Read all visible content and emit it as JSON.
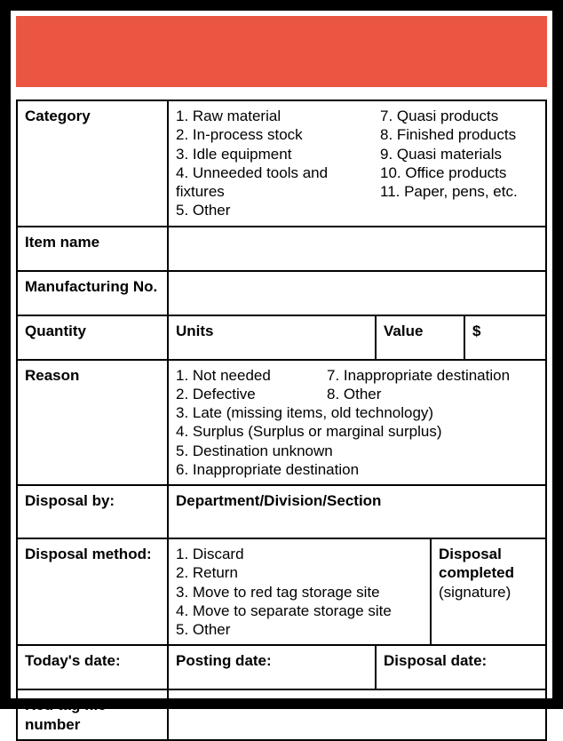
{
  "colors": {
    "header": "#eb5642",
    "border": "#000000",
    "background": "#ffffff"
  },
  "labels": {
    "category": "Category",
    "item_name": "Item name",
    "mfg_no": "Manufacturing No.",
    "quantity": "Quantity",
    "units": "Units",
    "value": "Value",
    "dollar": "$",
    "reason": "Reason",
    "disposal_by": "Disposal by:",
    "disposal_by_value": "Department/Division/Section",
    "disposal_method": "Disposal method:",
    "disposal_completed": "Disposal completed",
    "signature": "(signature)",
    "todays_date": "Today's date:",
    "posting_date": "Posting date:",
    "disposal_date": "Disposal date:",
    "red_tag": "Red tag file number"
  },
  "category_items_a": [
    "1. Raw material",
    "2. In-process stock",
    "3. Idle equipment",
    "4. Unneeded tools and fixtures",
    "5. Other"
  ],
  "category_items_b": [
    "7. Quasi products",
    "8. Finished products",
    "9. Quasi materials",
    "10. Office products",
    "11. Paper, pens, etc."
  ],
  "reason_items_a": [
    "1. Not needed",
    "2. Defective",
    "3. Late (missing items, old technology)",
    "4. Surplus (Surplus or marginal surplus)",
    "5. Destination unknown",
    "6. Inappropriate destination"
  ],
  "reason_items_b": [
    "7. Inappropriate destination",
    "8. Other"
  ],
  "disposal_method_items": [
    "1. Discard",
    "2. Return",
    "3. Move to red tag storage site",
    "4. Move to separate storage site",
    "5. Other"
  ]
}
